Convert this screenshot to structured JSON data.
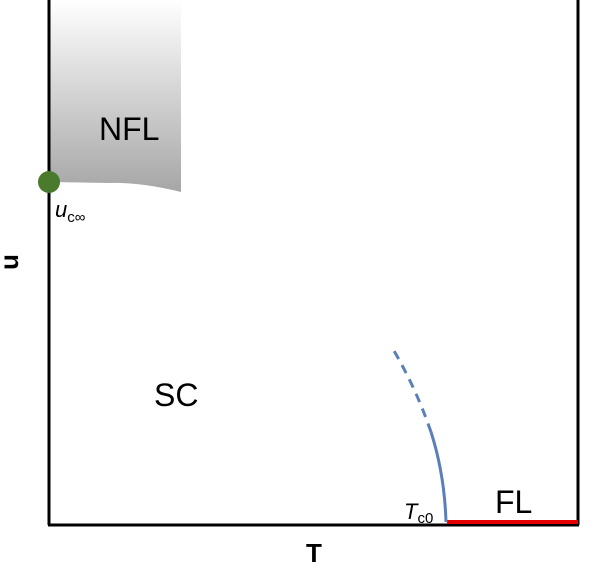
{
  "axes": {
    "x_label": "T",
    "y_label": "u"
  },
  "regions": {
    "nfl": "NFL",
    "sc": "SC",
    "fl": "FL"
  },
  "points": {
    "u_c_inf": {
      "base": "u",
      "sub": "c∞"
    },
    "t_c0": {
      "base": "T",
      "sub": "c0"
    }
  },
  "colors": {
    "frame": "#000000",
    "nfl_gradient_top": "#ffffff",
    "nfl_gradient_bottom": "#a6a6a6",
    "critical_point": "#4a7a2c",
    "phase_boundary": "#5b7fb8",
    "fl_line": "#e60000"
  }
}
